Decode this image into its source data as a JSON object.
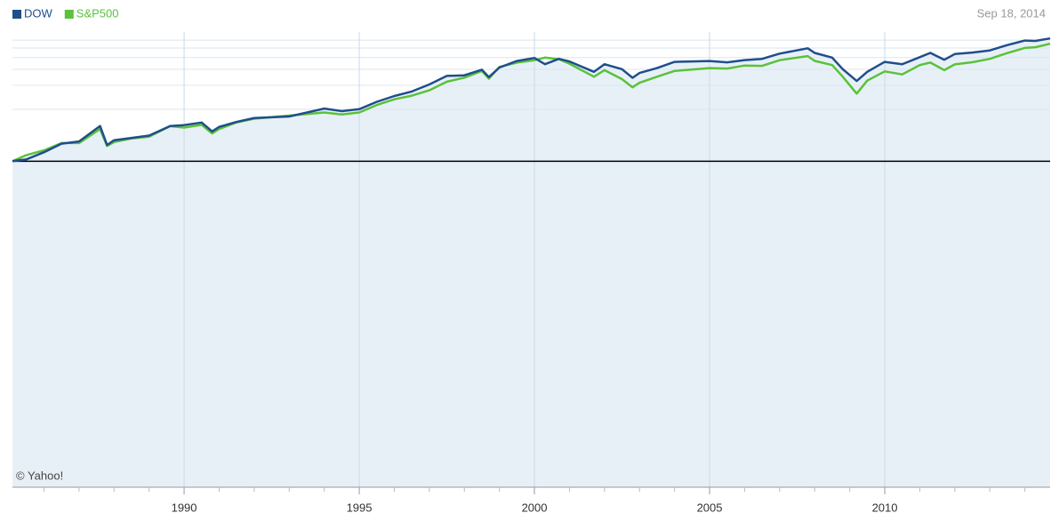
{
  "chart_data": {
    "type": "line",
    "date_label": "Sep 18, 2014",
    "credit": "© Yahoo!",
    "y_scale": "log-return",
    "xlim": [
      1985.1,
      2014.72
    ],
    "xticks": [
      1990,
      1995,
      2000,
      2005,
      2010
    ],
    "minor_xticks": [
      1986,
      1987,
      1988,
      1989,
      1991,
      1992,
      1993,
      1994,
      1996,
      1997,
      1998,
      1999,
      2001,
      2002,
      2003,
      2004,
      2006,
      2007,
      2008,
      2009,
      2011,
      2012,
      2013,
      2014
    ],
    "ylim": [
      -99.9,
      1280
    ],
    "yticks": [
      200,
      400,
      600,
      800,
      1000,
      1200
    ],
    "reference_line": 0,
    "grid": true,
    "legend": "top-left",
    "x": [
      1985.1,
      1985.5,
      1986,
      1986.5,
      1987,
      1987.6,
      1987.8,
      1988,
      1988.5,
      1989,
      1989.6,
      1990,
      1990.5,
      1990.8,
      1991,
      1991.5,
      1992,
      1993,
      1994,
      1994.5,
      1995,
      1995.5,
      1996,
      1996.5,
      1997,
      1997.5,
      1998,
      1998.5,
      1998.7,
      1999,
      1999.5,
      2000,
      2000.3,
      2000.7,
      2001,
      2001.7,
      2002,
      2002.5,
      2002.8,
      2003,
      2003.5,
      2004,
      2005,
      2005.5,
      2006,
      2006.5,
      2007,
      2007.8,
      2008,
      2008.5,
      2008.8,
      2009.2,
      2009.5,
      2010,
      2010.5,
      2011,
      2011.3,
      2011.7,
      2012,
      2012.5,
      2013,
      2013.5,
      2014,
      2014.3,
      2014.72
    ],
    "series": [
      {
        "name": "DOW",
        "color": "#1f4e8c",
        "values": [
          0,
          4,
          21,
          45,
          52,
          111,
          41,
          56,
          64,
          72,
          111,
          115,
          127,
          88,
          107,
          130,
          150,
          158,
          205,
          189,
          201,
          252,
          298,
          338,
          408,
          509,
          517,
          595,
          494,
          627,
          736,
          791,
          681,
          775,
          728,
          564,
          681,
          603,
          486,
          548,
          619,
          720,
          736,
          713,
          752,
          775,
          877,
          994,
          892,
          798,
          603,
          447,
          564,
          720,
          681,
          806,
          892,
          759,
          869,
          900,
          947,
          1072,
          1189,
          1181,
          1249
        ]
      },
      {
        "name": "S&P500",
        "color": "#5ac23a",
        "values": [
          0,
          14,
          26,
          47,
          47,
          98,
          38,
          50,
          62,
          68,
          110,
          104,
          116,
          80,
          98,
          128,
          146,
          163,
          181,
          169,
          181,
          229,
          271,
          301,
          349,
          439,
          487,
          577,
          475,
          637,
          708,
          750,
          798,
          768,
          690,
          499,
          589,
          469,
          379,
          427,
          499,
          577,
          619,
          613,
          660,
          654,
          750,
          828,
          738,
          666,
          499,
          319,
          451,
          571,
          529,
          666,
          708,
          589,
          678,
          714,
          774,
          888,
          1002,
          1020,
          1104
        ]
      }
    ]
  }
}
